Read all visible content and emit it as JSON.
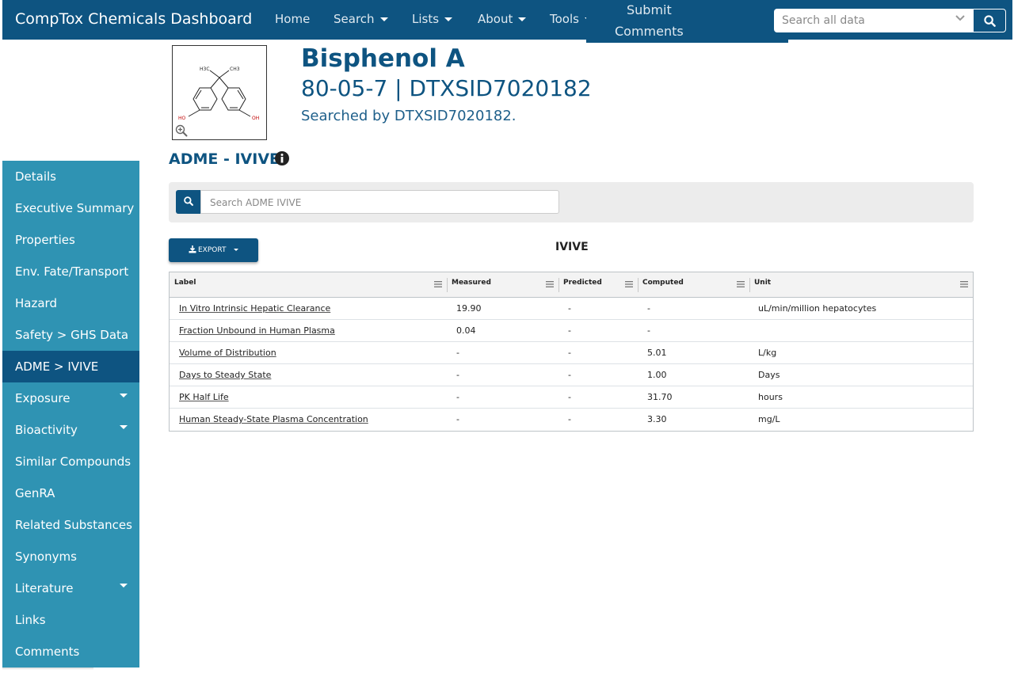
{
  "navbar": {
    "brand": "CompTox Chemicals Dashboard",
    "home": "Home",
    "search": "Search",
    "lists": "Lists",
    "about": "About",
    "tools": "Tools",
    "submit_line1": "Submit",
    "submit_line2": "Comments",
    "search_placeholder": "Search all data"
  },
  "compound": {
    "name": "Bisphenol A",
    "ids": "80-05-7 | DTXSID7020182",
    "searched_by": "Searched by DTXSID7020182.",
    "structure_labels": {
      "h3c": "H3C",
      "ch3": "CH3",
      "ho": "HO",
      "oh": "OH"
    }
  },
  "sidebar": {
    "items": [
      {
        "label": "Details",
        "dropdown": false,
        "active": false
      },
      {
        "label": "Executive Summary",
        "dropdown": false,
        "active": false
      },
      {
        "label": "Properties",
        "dropdown": false,
        "active": false
      },
      {
        "label": "Env. Fate/Transport",
        "dropdown": false,
        "active": false
      },
      {
        "label": "Hazard",
        "dropdown": false,
        "active": false
      },
      {
        "label": "Safety > GHS Data",
        "dropdown": false,
        "active": false
      },
      {
        "label": "ADME > IVIVE",
        "dropdown": false,
        "active": true
      },
      {
        "label": "Exposure",
        "dropdown": true,
        "active": false
      },
      {
        "label": "Bioactivity",
        "dropdown": true,
        "active": false
      },
      {
        "label": "Similar Compounds",
        "dropdown": false,
        "active": false
      },
      {
        "label": "GenRA",
        "dropdown": false,
        "active": false
      },
      {
        "label": "Related Substances",
        "dropdown": false,
        "active": false
      },
      {
        "label": "Synonyms",
        "dropdown": false,
        "active": false
      },
      {
        "label": "Literature",
        "dropdown": true,
        "active": false
      },
      {
        "label": "Links",
        "dropdown": false,
        "active": false
      },
      {
        "label": "Comments",
        "dropdown": false,
        "active": false
      }
    ]
  },
  "section": {
    "title": "ADME - IVIVE",
    "search_placeholder": "Search ADME IVIVE",
    "export_label": "EXPORT",
    "grid_title": "IVIVE"
  },
  "grid": {
    "columns": [
      "Label",
      "Measured",
      "Predicted",
      "Computed",
      "Unit"
    ],
    "rows": [
      {
        "label": "In Vitro Intrinsic Hepatic Clearance",
        "measured": "19.90",
        "predicted": "-",
        "computed": "-",
        "unit": "uL/min/million hepatocytes"
      },
      {
        "label": "Fraction Unbound in Human Plasma",
        "measured": "0.04",
        "predicted": "-",
        "computed": "-",
        "unit": ""
      },
      {
        "label": "Volume of Distribution",
        "measured": "-",
        "predicted": "-",
        "computed": "5.01",
        "unit": "L/kg"
      },
      {
        "label": "Days to Steady State",
        "measured": "-",
        "predicted": "-",
        "computed": "1.00",
        "unit": "Days"
      },
      {
        "label": "PK Half Life",
        "measured": "-",
        "predicted": "-",
        "computed": "31.70",
        "unit": "hours"
      },
      {
        "label": "Human Steady-State Plasma Concentration",
        "measured": "-",
        "predicted": "-",
        "computed": "3.30",
        "unit": "mg/L"
      }
    ]
  },
  "colors": {
    "navbar": "#0e5481",
    "sidebar": "#2f93b3",
    "sidebar_active": "#0e5481",
    "title": "#0e5481"
  },
  "icons": {
    "global_search": "search-icon",
    "info": "info-circle-icon",
    "export": "download-icon",
    "zoom": "zoom-in-icon",
    "column_menu": "column-menu-icon"
  }
}
